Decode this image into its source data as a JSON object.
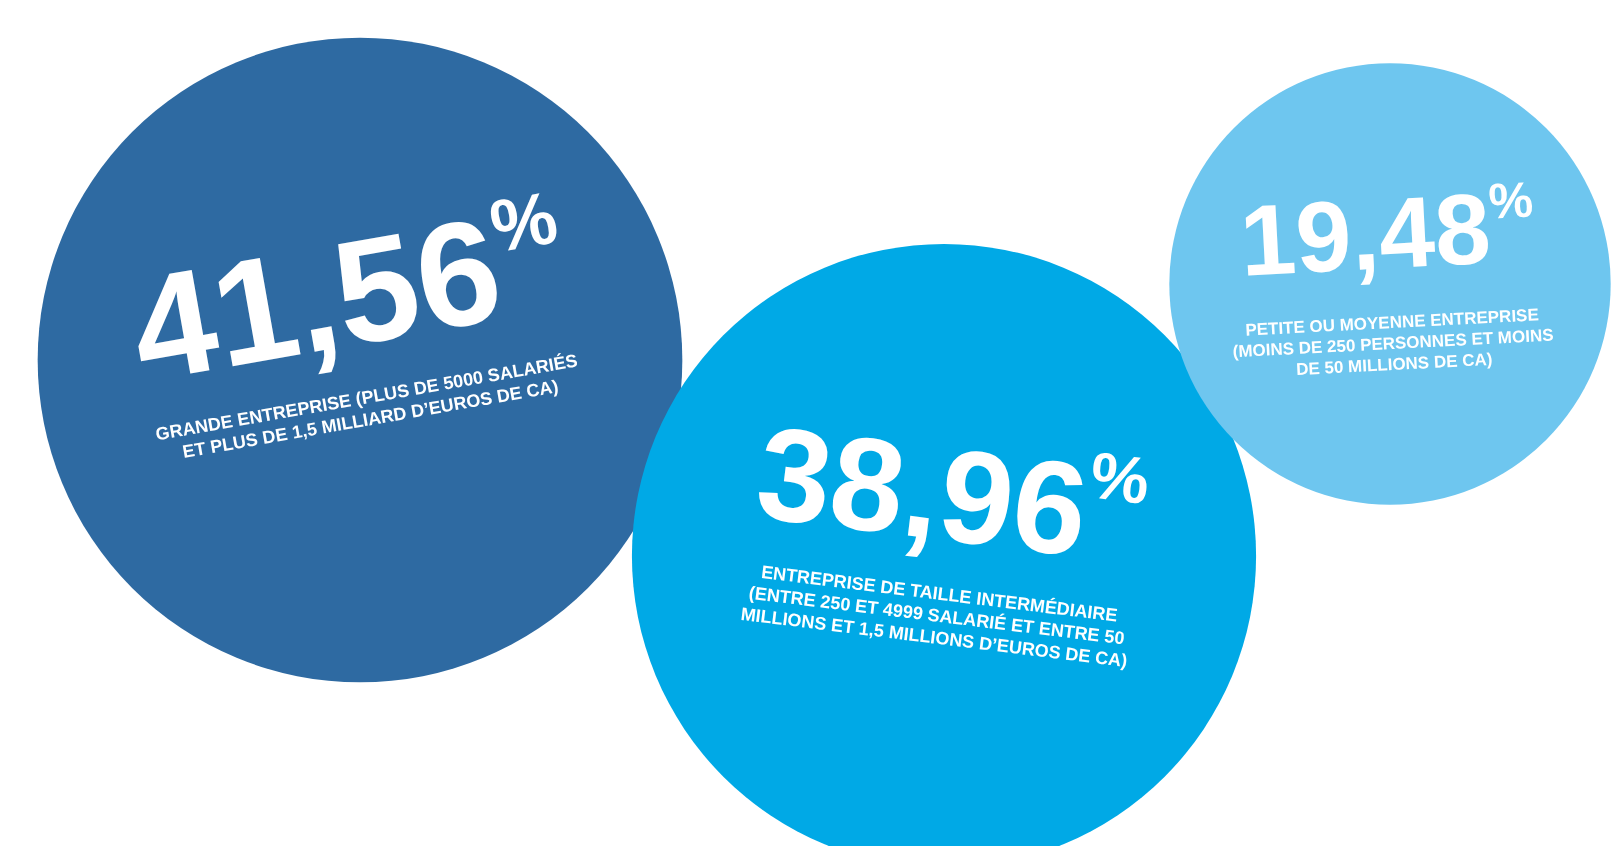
{
  "chart_data": {
    "type": "other",
    "categories": [
      "GRANDE ENTREPRISE (PLUS DE 5000 SALARIÉS ET PLUS DE 1,5 MILLIARD D’EUROS DE CA)",
      "ENTREPRISE DE TAILLE INTERMÉDIAIRE (ENTRE 250 ET 4999 SALARIÉ ET ENTRE 50 MILLIONS ET 1,5 MILLIONS D’EUROS DE CA)",
      "PETITE OU MOYENNE ENTREPRISE (MOINS DE 250 PERSONNES ET MOINS DE 50 MILLIONS DE CA)"
    ],
    "values": [
      41.56,
      38.96,
      19.48
    ],
    "value_labels": [
      "41,56$^{%}$",
      "38,96$^{%}$",
      "19,48$^{%}$"
    ],
    "colors": [
      "#2e6aa2",
      "#00a9e6",
      "#6ec6ef"
    ]
  }
}
